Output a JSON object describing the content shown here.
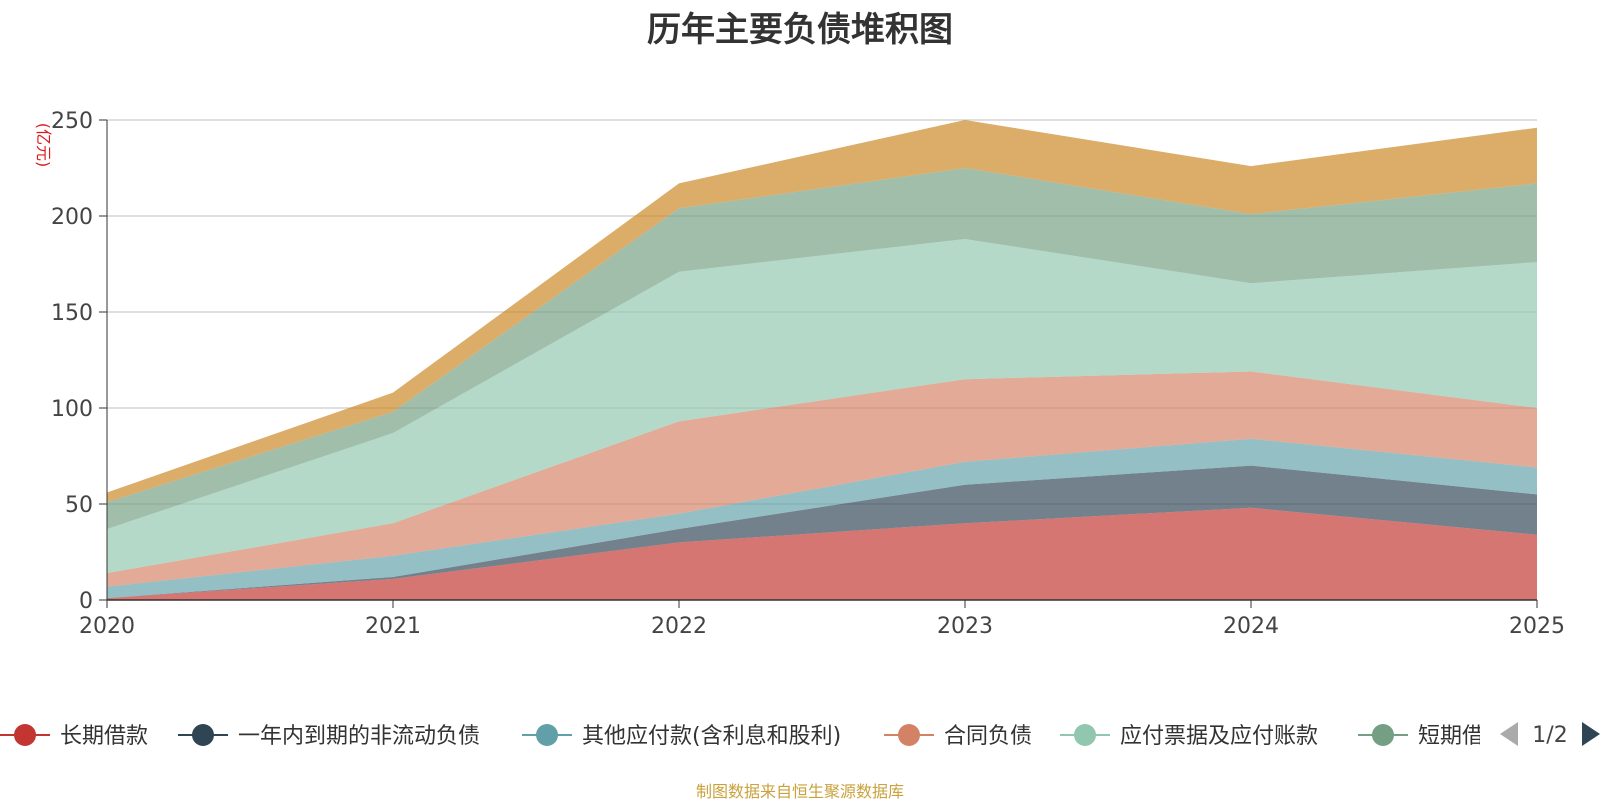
{
  "chart_data": {
    "type": "area",
    "stacked": true,
    "title": "历年主要负债堆积图",
    "ylabel": "(亿元)",
    "xlabel": "",
    "x": [
      "2020",
      "2021",
      "2022",
      "2023",
      "2024",
      "2025"
    ],
    "ylim": [
      0,
      250
    ],
    "yticks": [
      0,
      50,
      100,
      150,
      200,
      250
    ],
    "grid": true,
    "legend_position": "bottom",
    "series": [
      {
        "name": "长期借款",
        "color": "#c23531",
        "values": [
          1,
          11,
          30,
          40,
          48,
          34
        ]
      },
      {
        "name": "一年内到期的非流动负债",
        "color": "#2f4554",
        "values": [
          0,
          1,
          7,
          20,
          22,
          21
        ]
      },
      {
        "name": "其他应付款(含利息和股利)",
        "color": "#61a0a8",
        "values": [
          6,
          11,
          8,
          12,
          14,
          14
        ]
      },
      {
        "name": "合同负债",
        "color": "#d48265",
        "values": [
          7,
          17,
          48,
          43,
          35,
          31
        ]
      },
      {
        "name": "应付票据及应付账款",
        "color": "#91c7ae",
        "values": [
          23,
          47,
          78,
          73,
          46,
          76
        ]
      },
      {
        "name": "短期借款",
        "color": "#749f83",
        "values": [
          14,
          11,
          33,
          37,
          36,
          41
        ]
      },
      {
        "name": "",
        "color": "#ca8622",
        "values": [
          5,
          10,
          13,
          25,
          25,
          29
        ]
      }
    ]
  },
  "legend": {
    "visible_items": [
      "长期借款",
      "一年内到期的非流动负债",
      "其他应付款(含利息和股利)",
      "合同负债",
      "应付票据及应付账款",
      "短期借款"
    ],
    "truncated_last_label": "短期借",
    "page_indicator": "1/2"
  },
  "footer": "制图数据来自恒生聚源数据库"
}
